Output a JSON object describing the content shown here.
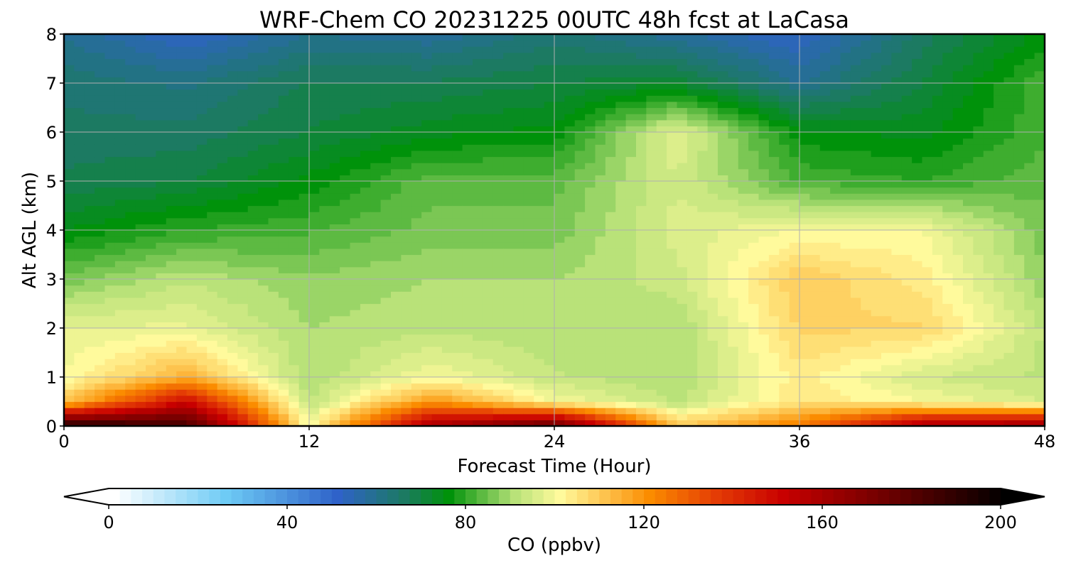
{
  "chart_data": {
    "type": "heatmap",
    "title": "WRF-Chem CO  20231225 00UTC 48h fcst at LaCasa",
    "xlabel": "Forecast Time (Hour)",
    "ylabel": "Alt AGL (km)",
    "xlim": [
      0,
      48
    ],
    "ylim": [
      0,
      8
    ],
    "x_ticks": [
      "0",
      "12",
      "24",
      "36",
      "48"
    ],
    "y_ticks": [
      "0",
      "1",
      "2",
      "3",
      "4",
      "5",
      "6",
      "7",
      "8"
    ],
    "grid": true,
    "colorbar": {
      "label": "CO  (ppbv)",
      "range": [
        0,
        200
      ],
      "ticks": [
        "0",
        "40",
        "80",
        "120",
        "160",
        "200"
      ],
      "extend": "both",
      "levels_step": 2.5
    },
    "colormap_stops": [
      {
        "v": 0,
        "c": "#ffffff"
      },
      {
        "v": 25,
        "c": "#6ecbf5"
      },
      {
        "v": 50,
        "c": "#2f62c9"
      },
      {
        "v": 65,
        "c": "#1c7a62"
      },
      {
        "v": 75,
        "c": "#00920a"
      },
      {
        "v": 90,
        "c": "#b9e279"
      },
      {
        "v": 100,
        "c": "#fffa9c"
      },
      {
        "v": 120,
        "c": "#fb8c00"
      },
      {
        "v": 135,
        "c": "#e43c05"
      },
      {
        "v": 150,
        "c": "#c80000"
      },
      {
        "v": 170,
        "c": "#7a0000"
      },
      {
        "v": 200,
        "c": "#000000"
      }
    ],
    "z_units": "ppbv",
    "x": [
      0,
      6,
      12,
      18,
      24,
      30,
      36,
      42,
      48
    ],
    "y": [
      0,
      0.5,
      1,
      2,
      3,
      4,
      5,
      6,
      7,
      8
    ],
    "z": [
      [
        195,
        185,
        100,
        160,
        180,
        110,
        125,
        160,
        165
      ],
      [
        110,
        150,
        92,
        120,
        100,
        92,
        105,
        100,
        95
      ],
      [
        100,
        115,
        90,
        100,
        93,
        90,
        104,
        95,
        92
      ],
      [
        98,
        98,
        90,
        92,
        90,
        90,
        108,
        108,
        92
      ],
      [
        86,
        92,
        88,
        90,
        90,
        94,
        110,
        104,
        88
      ],
      [
        75,
        80,
        82,
        86,
        86,
        96,
        100,
        100,
        86
      ],
      [
        68,
        70,
        76,
        84,
        84,
        95,
        82,
        80,
        84
      ],
      [
        66,
        66,
        70,
        74,
        76,
        97,
        76,
        74,
        82
      ],
      [
        64,
        62,
        68,
        68,
        70,
        72,
        60,
        70,
        82
      ],
      [
        60,
        52,
        60,
        58,
        64,
        58,
        52,
        66,
        76
      ]
    ]
  }
}
